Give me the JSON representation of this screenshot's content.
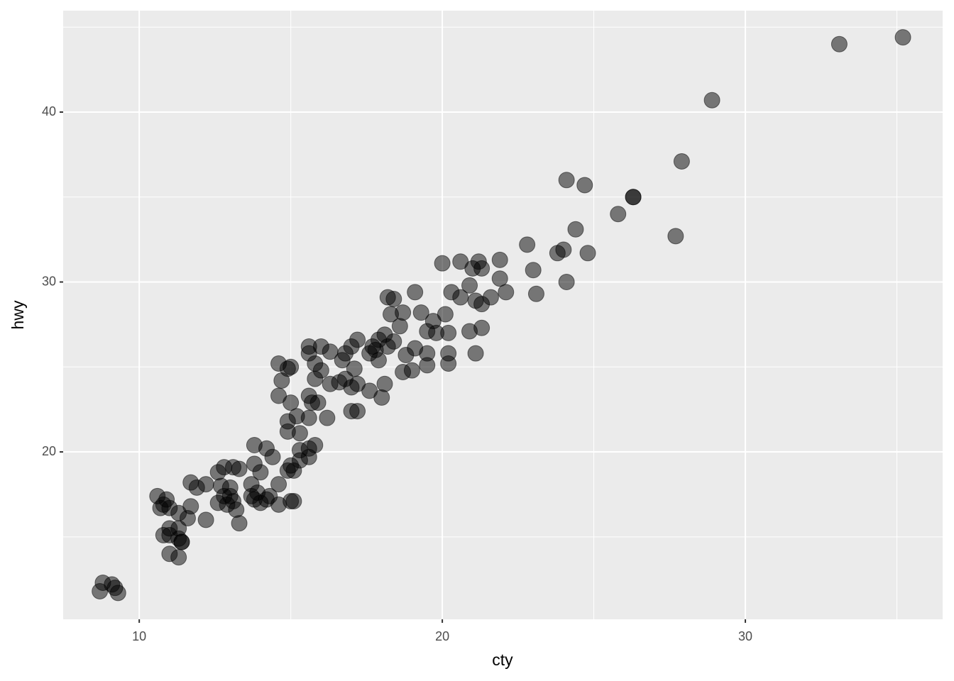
{
  "chart_data": {
    "type": "scatter",
    "x_label": "cty",
    "y_label": "hwy",
    "xlim": [
      7.49,
      36.51
    ],
    "ylim": [
      10.15,
      45.97
    ],
    "xticks": [
      10,
      20,
      30
    ],
    "yticks": [
      20,
      30,
      40
    ],
    "x_minor_breaks": [
      15,
      25,
      35
    ],
    "y_minor_breaks": [
      15,
      25,
      35,
      45
    ],
    "grid": true,
    "color": "#000000",
    "alpha": 0.5,
    "x": [
      35.2,
      33.1,
      28.9,
      27.9,
      26.3,
      26.3,
      25.8,
      27.7,
      24.1,
      24.7,
      24.4,
      24.8,
      23.8,
      24.0,
      24.1,
      22.8,
      23.0,
      23.1,
      21.9,
      21.9,
      22.1,
      20.0,
      20.6,
      21.2,
      21.0,
      21.3,
      20.3,
      20.6,
      20.9,
      21.1,
      21.3,
      21.6,
      20.9,
      21.3,
      21.1,
      20.1,
      20.2,
      20.2,
      20.2,
      19.7,
      19.8,
      19.1,
      19.3,
      19.5,
      19.5,
      19.5,
      19.0,
      18.7,
      18.3,
      18.2,
      18.4,
      18.6,
      18.8,
      19.1,
      18.7,
      18.1,
      17.9,
      17.8,
      18.2,
      18.4,
      17.6,
      17.9,
      17.7,
      18.0,
      18.1,
      17.6,
      17.2,
      17.0,
      16.8,
      16.7,
      16.8,
      17.1,
      17.2,
      17.0,
      16.6,
      16.3,
      16.0,
      16.3,
      15.6,
      15.6,
      15.8,
      16.0,
      15.8,
      17.0,
      17.2,
      15.6,
      15.7,
      15.9,
      16.2,
      15.6,
      15.2,
      14.9,
      15.0,
      14.6,
      14.7,
      14.6,
      14.9,
      15.0,
      14.9,
      15.3,
      15.3,
      15.8,
      15.6,
      15.6,
      15.3,
      15.0,
      14.9,
      15.1,
      14.6,
      15.0,
      15.1,
      14.6,
      13.8,
      14.2,
      14.4,
      13.8,
      14.0,
      13.7,
      13.9,
      13.7,
      13.8,
      14.2,
      14.3,
      14.0,
      13.1,
      13.3,
      12.8,
      12.6,
      12.7,
      13.0,
      12.8,
      13.0,
      13.1,
      12.9,
      12.6,
      13.2,
      13.3,
      12.2,
      12.2,
      11.7,
      11.9,
      11.7,
      11.6,
      11.3,
      11.0,
      10.9,
      10.6,
      10.7,
      10.8,
      11.3,
      11.0,
      10.8,
      11.0,
      11.3,
      11.4,
      11.4,
      11.0,
      11.3,
      8.8,
      9.1,
      8.7,
      9.2,
      9.3
    ],
    "values": [
      44.4,
      44.0,
      40.7,
      37.1,
      35.0,
      35.0,
      34.0,
      32.7,
      36.0,
      35.7,
      33.1,
      31.7,
      31.7,
      31.9,
      30.0,
      32.2,
      30.7,
      29.3,
      31.3,
      30.2,
      29.4,
      31.1,
      31.2,
      31.2,
      30.8,
      30.8,
      29.4,
      29.1,
      29.8,
      28.9,
      28.7,
      29.1,
      27.1,
      27.3,
      25.8,
      28.1,
      27.0,
      25.8,
      25.2,
      27.7,
      27.0,
      29.4,
      28.2,
      27.1,
      25.8,
      25.1,
      24.8,
      28.2,
      28.1,
      29.1,
      29.0,
      27.4,
      25.7,
      26.1,
      24.7,
      26.9,
      26.6,
      26.0,
      26.2,
      26.5,
      25.8,
      25.4,
      26.2,
      23.2,
      24.0,
      23.6,
      26.6,
      26.2,
      25.8,
      25.4,
      24.3,
      24.9,
      24.0,
      23.8,
      24.1,
      24.0,
      26.2,
      25.9,
      26.2,
      25.8,
      25.2,
      24.8,
      24.3,
      22.4,
      22.4,
      23.3,
      22.9,
      22.9,
      22.0,
      22.0,
      22.1,
      21.8,
      22.9,
      23.3,
      24.2,
      25.2,
      24.9,
      25.0,
      21.2,
      21.1,
      20.1,
      20.4,
      20.2,
      19.7,
      19.5,
      19.2,
      18.9,
      18.9,
      18.1,
      17.1,
      17.1,
      16.9,
      20.4,
      20.2,
      19.7,
      19.3,
      18.8,
      18.1,
      17.6,
      17.4,
      17.2,
      17.2,
      17.4,
      17.0,
      19.1,
      19.0,
      19.1,
      18.8,
      18.0,
      17.9,
      17.4,
      17.4,
      17.1,
      16.9,
      17.0,
      16.6,
      15.8,
      18.1,
      16.0,
      18.2,
      17.9,
      16.8,
      16.1,
      16.4,
      16.7,
      17.2,
      17.4,
      16.7,
      16.9,
      15.5,
      15.5,
      15.1,
      15.1,
      14.9,
      14.7,
      14.7,
      14.0,
      13.8,
      12.3,
      12.2,
      11.8,
      12.0,
      11.7
    ]
  }
}
